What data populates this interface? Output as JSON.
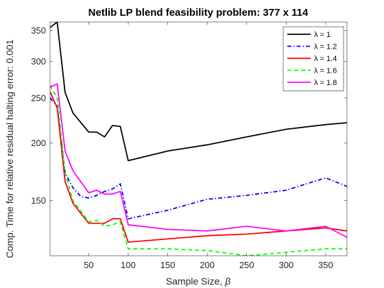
{
  "chart_data": {
    "type": "line",
    "title": "Netlib LP blend feasibility problem: 377 x 114",
    "xlabel": "Sample Size, β",
    "ylabel": "Comp. Time for relative residual halting error: 0.001",
    "xlim": [
      1,
      377
    ],
    "ylim": [
      114,
      365
    ],
    "yscale": "log",
    "xticks": [
      50,
      100,
      150,
      200,
      250,
      300,
      350
    ],
    "yticks": [
      150,
      200,
      250,
      300,
      350
    ],
    "grid": false,
    "legend_position": "top-right",
    "series": [
      {
        "name": "λ = 1",
        "color": "#000000",
        "dash": "solid",
        "x": [
          1,
          10,
          20,
          30,
          50,
          60,
          70,
          80,
          90,
          100,
          150,
          200,
          250,
          300,
          350,
          377
        ],
        "y": [
          355,
          365,
          257,
          232,
          211,
          211,
          206,
          218,
          217,
          183,
          192,
          198,
          206,
          214,
          219,
          221
        ]
      },
      {
        "name": "λ = 1.2",
        "color": "#0000FF",
        "dash": "dashdot",
        "x": [
          1,
          10,
          20,
          30,
          40,
          50,
          60,
          70,
          80,
          90,
          100,
          150,
          200,
          250,
          300,
          350,
          377
        ],
        "y": [
          250,
          240,
          172,
          160,
          153,
          152,
          154,
          157,
          159,
          163,
          137,
          143,
          151,
          154,
          158,
          168,
          161
        ]
      },
      {
        "name": "λ = 1.4",
        "color": "#FF0000",
        "dash": "solid",
        "x": [
          1,
          10,
          20,
          30,
          50,
          60,
          70,
          80,
          90,
          100,
          150,
          200,
          250,
          300,
          350,
          377
        ],
        "y": [
          258,
          238,
          165,
          148,
          134,
          134,
          134,
          137,
          137,
          122,
          124,
          126,
          127,
          129,
          131,
          129
        ]
      },
      {
        "name": "λ = 1.6",
        "color": "#00FF00",
        "dash": "dashed",
        "x": [
          1,
          10,
          20,
          30,
          50,
          60,
          70,
          80,
          90,
          100,
          150,
          200,
          250,
          300,
          350,
          377
        ],
        "y": [
          266,
          250,
          172,
          150,
          135,
          136,
          132,
          133,
          135,
          118,
          118,
          117,
          114,
          116,
          118,
          118
        ]
      },
      {
        "name": "λ = 1.8",
        "color": "#FF00FF",
        "dash": "solid",
        "x": [
          1,
          10,
          20,
          30,
          50,
          60,
          70,
          80,
          90,
          100,
          150,
          200,
          250,
          300,
          350,
          377
        ],
        "y": [
          264,
          268,
          192,
          174,
          156,
          158,
          155,
          155,
          157,
          133,
          130,
          129,
          132,
          129,
          132,
          125
        ]
      }
    ]
  }
}
